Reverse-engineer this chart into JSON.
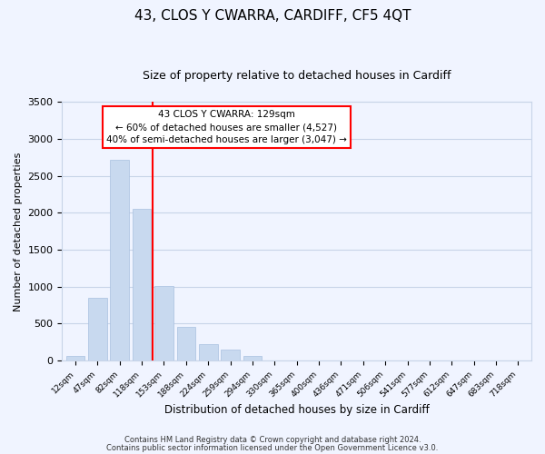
{
  "title": "43, CLOS Y CWARRA, CARDIFF, CF5 4QT",
  "subtitle": "Size of property relative to detached houses in Cardiff",
  "xlabel": "Distribution of detached houses by size in Cardiff",
  "ylabel": "Number of detached properties",
  "bar_labels": [
    "12sqm",
    "47sqm",
    "82sqm",
    "118sqm",
    "153sqm",
    "188sqm",
    "224sqm",
    "259sqm",
    "294sqm",
    "330sqm",
    "365sqm",
    "400sqm",
    "436sqm",
    "471sqm",
    "506sqm",
    "541sqm",
    "577sqm",
    "612sqm",
    "647sqm",
    "683sqm",
    "718sqm"
  ],
  "bar_values": [
    60,
    850,
    2720,
    2060,
    1010,
    455,
    220,
    145,
    60,
    0,
    5,
    0,
    0,
    0,
    0,
    0,
    0,
    0,
    0,
    0,
    0
  ],
  "bar_color": "#c8d9ef",
  "bar_edgecolor": "#a8c0e0",
  "vline_x": 3.5,
  "vline_color": "red",
  "annotation_line1": "43 CLOS Y CWARRA: 129sqm",
  "annotation_line2": "← 60% of detached houses are smaller (4,527)",
  "annotation_line3": "40% of semi-detached houses are larger (3,047) →",
  "ylim": [
    0,
    3500
  ],
  "yticks": [
    0,
    500,
    1000,
    1500,
    2000,
    2500,
    3000,
    3500
  ],
  "footer1": "Contains HM Land Registry data © Crown copyright and database right 2024.",
  "footer2": "Contains public sector information licensed under the Open Government Licence v3.0.",
  "bg_color": "#f0f4ff",
  "grid_color": "#c8d4e8"
}
